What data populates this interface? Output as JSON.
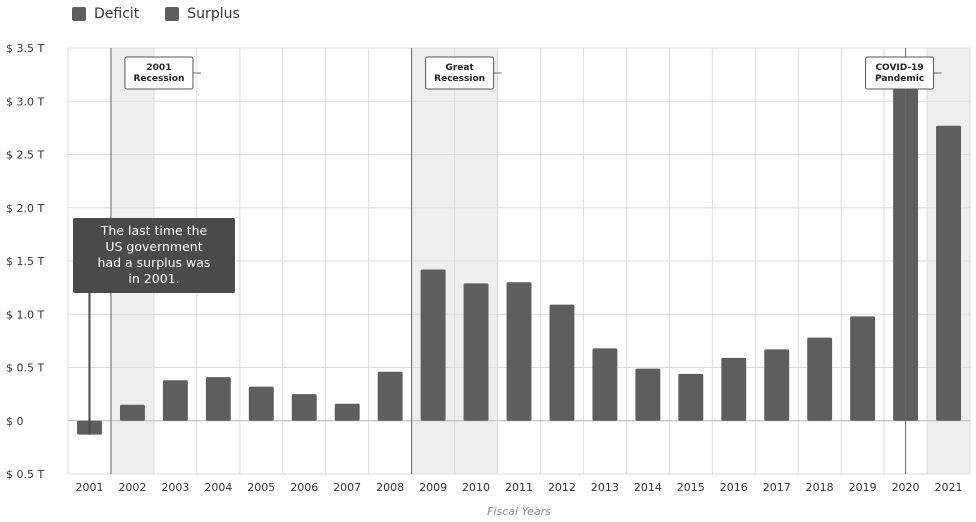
{
  "legend": [
    {
      "label": "Deficit",
      "color": "#5e5e5e"
    },
    {
      "label": "Surplus",
      "color": "#5e5e5e"
    }
  ],
  "chart_data": {
    "type": "bar",
    "title": "",
    "xlabel": "Fiscal Years",
    "ylabel": "",
    "categories": [
      "2001",
      "2002",
      "2003",
      "2004",
      "2005",
      "2006",
      "2007",
      "2008",
      "2009",
      "2010",
      "2011",
      "2012",
      "2013",
      "2014",
      "2015",
      "2016",
      "2017",
      "2018",
      "2019",
      "2020",
      "2021"
    ],
    "values": [
      -0.13,
      0.15,
      0.38,
      0.41,
      0.32,
      0.25,
      0.16,
      0.46,
      1.42,
      1.29,
      1.3,
      1.09,
      0.68,
      0.49,
      0.44,
      0.59,
      0.67,
      0.78,
      0.98,
      3.13,
      2.77
    ],
    "unit": "T",
    "ylim": [
      -0.5,
      3.5
    ],
    "yticks": [
      {
        "value": 3.5,
        "label": "$ 3.5 T"
      },
      {
        "value": 3.0,
        "label": "$ 3.0 T"
      },
      {
        "value": 2.5,
        "label": "$ 2.5 T"
      },
      {
        "value": 2.0,
        "label": "$ 2.0 T"
      },
      {
        "value": 1.5,
        "label": "$ 1.5 T"
      },
      {
        "value": 1.0,
        "label": "$ 1.0 T"
      },
      {
        "value": 0.5,
        "label": "$ 0.5 T"
      },
      {
        "value": 0,
        "label": "$ 0"
      },
      {
        "value": -0.5,
        "label": "$ 0.5 T"
      }
    ],
    "grid": true,
    "bar_color": "#5e5e5e",
    "shaded_periods": [
      {
        "from": "2002",
        "to": "2002"
      },
      {
        "from": "2009",
        "to": "2010"
      },
      {
        "from": "2021",
        "to": "2021"
      }
    ],
    "annotations": [
      {
        "lines": [
          "2001",
          "Recession"
        ],
        "year": "2002"
      },
      {
        "lines": [
          "Great",
          "Recession"
        ],
        "year": "2009"
      },
      {
        "lines": [
          "COVID-19",
          "Pandemic"
        ],
        "year": "2020"
      }
    ],
    "callout": {
      "lines": [
        "The last time the",
        "US government",
        "had a surplus was",
        "in 2001."
      ],
      "year": "2001",
      "color": "#4a4a4a"
    },
    "legend_position": "top-left"
  }
}
